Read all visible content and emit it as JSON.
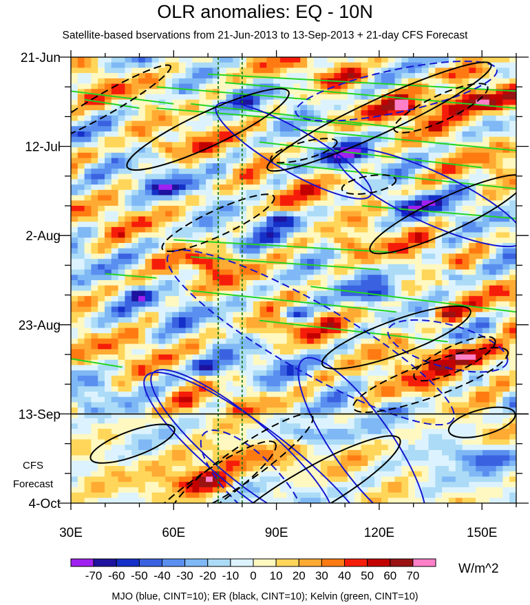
{
  "chart_data": {
    "type": "heatmap",
    "title": "OLR anomalies: EQ - 10N",
    "subtitle": "Satellite-based bservations from 21-Jun-2013 to 13-Sep-2013 + 21-day CFS Forecast",
    "x_axis": {
      "range": [
        30,
        160
      ],
      "unit": "longitude (degrees E)",
      "ticks": [
        30,
        60,
        90,
        120,
        150
      ],
      "tick_labels": [
        "30E",
        "60E",
        "90E",
        "120E",
        "150E"
      ]
    },
    "y_axis": {
      "range": [
        "21-Jun-2013",
        "4-Oct-2013"
      ],
      "range_days": [
        0,
        105
      ],
      "unit": "days since 21-Jun-2013",
      "ticks": [
        0,
        21,
        42,
        63,
        84,
        105
      ],
      "tick_labels": [
        "21-Jun",
        "12-Jul",
        "2-Aug",
        "23-Aug",
        "13-Sep",
        "4-Oct"
      ]
    },
    "forecast_start_day": 84,
    "forecast_label_lines": [
      "CFS",
      "Forecast"
    ],
    "reference_lines_lon": [
      73,
      80
    ],
    "colorbar": {
      "unit": "W/m^2",
      "levels": [
        -70,
        -60,
        -50,
        -40,
        -30,
        -20,
        -10,
        0,
        10,
        20,
        30,
        40,
        50,
        60,
        70
      ],
      "level_labels": [
        "-70",
        "-60",
        "-50",
        "-40",
        "-30",
        "-20",
        "-10",
        "0",
        "10",
        "20",
        "30",
        "40",
        "50",
        "60",
        "70"
      ],
      "colors": [
        "#a020f0",
        "#1d139e",
        "#1530c8",
        "#3a62e0",
        "#5a8ff0",
        "#7fb8f5",
        "#abdbf6",
        "#dcf3ff",
        "#fff8c0",
        "#ffd65a",
        "#ffaa33",
        "#ff7b12",
        "#f51d0a",
        "#c20000",
        "#9a1313",
        "#ff80c8"
      ]
    },
    "overlays": [
      {
        "name": "MJO",
        "color": "#1515d0",
        "cint": 10
      },
      {
        "name": "ER",
        "color": "#000000",
        "cint": 10
      },
      {
        "name": "Kelvin",
        "color": "#22d422",
        "cint": 10
      }
    ],
    "features": {
      "mjo_solid": [
        {
          "lon": 95,
          "day": 22,
          "rlon": 26,
          "rday": 5,
          "deg": 30
        },
        {
          "lon": 135,
          "day": 33,
          "rlon": 30,
          "rday": 6,
          "deg": 25
        },
        {
          "lon": 85,
          "day": 96,
          "rlon": 42,
          "rday": 8,
          "deg": 38
        },
        {
          "lon": 80,
          "day": 92,
          "rlon": 34,
          "rday": 7,
          "deg": 40
        },
        {
          "lon": 115,
          "day": 91,
          "rlon": 30,
          "rday": 7,
          "deg": 55
        }
      ],
      "mjo_dashed": [
        {
          "lon": 125,
          "day": 8,
          "rlon": 30,
          "rday": 5,
          "deg": -12
        },
        {
          "lon": 100,
          "day": 66,
          "rlon": 48,
          "rday": 8,
          "deg": 30
        },
        {
          "lon": 140,
          "day": 68,
          "rlon": 18,
          "rday": 5,
          "deg": 15
        },
        {
          "lon": 83,
          "day": 100,
          "rlon": 20,
          "rday": 6,
          "deg": 45
        }
      ],
      "er_solid": [
        {
          "lon": 70,
          "day": 17,
          "rlon": 26,
          "rday": 4,
          "deg": -25
        },
        {
          "lon": 120,
          "day": 14,
          "rlon": 36,
          "rday": 4,
          "deg": -25
        },
        {
          "lon": 140,
          "day": 37,
          "rlon": 25,
          "rday": 4,
          "deg": -25
        },
        {
          "lon": 125,
          "day": 66,
          "rlon": 23,
          "rday": 4,
          "deg": -20
        },
        {
          "lon": 48,
          "day": 91,
          "rlon": 13,
          "rday": 3,
          "deg": -20
        },
        {
          "lon": 150,
          "day": 86,
          "rlon": 10,
          "rday": 3,
          "deg": -15
        },
        {
          "lon": 100,
          "day": 102,
          "rlon": 30,
          "rday": 5,
          "deg": -30
        }
      ],
      "er_dashed": [
        {
          "lon": 40,
          "day": 11,
          "rlon": 22,
          "rday": 2.5,
          "deg": -30
        },
        {
          "lon": 73,
          "day": 39,
          "rlon": 18,
          "rday": 3,
          "deg": -25
        },
        {
          "lon": 98,
          "day": 22,
          "rlon": 10,
          "rday": 2,
          "deg": -15
        },
        {
          "lon": 117,
          "day": 30,
          "rlon": 8,
          "rday": 2,
          "deg": -10
        },
        {
          "lon": 138,
          "day": 12,
          "rlon": 15,
          "rday": 3,
          "deg": -25
        },
        {
          "lon": 142,
          "day": 71,
          "rlon": 13,
          "rday": 3,
          "deg": -25
        },
        {
          "lon": 135,
          "day": 76,
          "rlon": 24,
          "rday": 4,
          "deg": -20
        },
        {
          "lon": 80,
          "day": 96,
          "rlon": 25,
          "rday": 4,
          "deg": -35
        },
        {
          "lon": 70,
          "day": 102,
          "rlon": 24,
          "rday": 4,
          "deg": -35
        }
      ],
      "kelvin_lines": [
        [
          [
            30,
            8
          ],
          [
            60,
            11
          ]
        ],
        [
          [
            34,
            10
          ],
          [
            50,
            12
          ]
        ],
        [
          [
            55,
            7
          ],
          [
            100,
            10
          ]
        ],
        [
          [
            55,
            12
          ],
          [
            115,
            16
          ]
        ],
        [
          [
            65,
            11
          ],
          [
            130,
            17
          ]
        ],
        [
          [
            70,
            4
          ],
          [
            160,
            8
          ]
        ],
        [
          [
            75,
            6
          ],
          [
            160,
            12
          ]
        ],
        [
          [
            85,
            20
          ],
          [
            150,
            26
          ]
        ],
        [
          [
            95,
            17
          ],
          [
            160,
            22
          ]
        ],
        [
          [
            90,
            25
          ],
          [
            160,
            31
          ]
        ],
        [
          [
            115,
            35
          ],
          [
            160,
            38
          ]
        ],
        [
          [
            60,
            43
          ],
          [
            125,
            46
          ]
        ],
        [
          [
            65,
            47
          ],
          [
            120,
            50
          ]
        ],
        [
          [
            100,
            54
          ],
          [
            160,
            60
          ]
        ],
        [
          [
            65,
            55
          ],
          [
            125,
            60
          ]
        ],
        [
          [
            30,
            71
          ],
          [
            45,
            73
          ]
        ],
        [
          [
            85,
            62
          ],
          [
            140,
            67
          ]
        ],
        [
          [
            40,
            51
          ],
          [
            55,
            52
          ]
        ]
      ],
      "positive_blobs": [
        {
          "lon": 58,
          "day": 21,
          "rlon": 4,
          "rday": 1.5,
          "v": 30
        },
        {
          "lon": 75,
          "day": 14,
          "rlon": 3,
          "rday": 1.5,
          "v": 25
        },
        {
          "lon": 110,
          "day": 5,
          "rlon": 8,
          "rday": 2,
          "v": 30
        },
        {
          "lon": 150,
          "day": 10,
          "rlon": 12,
          "rday": 3,
          "v": 55
        },
        {
          "lon": 145,
          "day": 4,
          "rlon": 10,
          "rday": 2,
          "v": 45
        },
        {
          "lon": 128,
          "day": 12,
          "rlon": 8,
          "rday": 2,
          "v": 30
        },
        {
          "lon": 70,
          "day": 48,
          "rlon": 7,
          "rday": 2,
          "v": 40
        },
        {
          "lon": 145,
          "day": 70,
          "rlon": 14,
          "rday": 3,
          "v": 50
        },
        {
          "lon": 75,
          "day": 94,
          "rlon": 16,
          "rday": 4,
          "v": 35
        },
        {
          "lon": 68,
          "day": 100,
          "rlon": 9,
          "rday": 3,
          "v": 55
        },
        {
          "lon": 92,
          "day": 64,
          "rlon": 6,
          "rday": 2,
          "v": 30
        },
        {
          "lon": 110,
          "day": 44,
          "rlon": 6,
          "rday": 2,
          "v": 30
        },
        {
          "lon": 140,
          "day": 60,
          "rlon": 5,
          "rday": 2,
          "v": 35
        }
      ],
      "negative_blobs": [
        {
          "lon": 90,
          "day": 38,
          "rlon": 4,
          "rday": 1.5,
          "v": -55
        },
        {
          "lon": 110,
          "day": 23,
          "rlon": 6,
          "rday": 2,
          "v": -45
        },
        {
          "lon": 130,
          "day": 35,
          "rlon": 6,
          "rday": 2,
          "v": -50
        },
        {
          "lon": 120,
          "day": 56,
          "rlon": 4,
          "rday": 1.5,
          "v": -50
        },
        {
          "lon": 95,
          "day": 60,
          "rlon": 5,
          "rday": 1.5,
          "v": -45
        },
        {
          "lon": 100,
          "day": 89,
          "rlon": 8,
          "rday": 2,
          "v": -45
        },
        {
          "lon": 150,
          "day": 94,
          "rlon": 8,
          "rday": 2.5,
          "v": -45
        },
        {
          "lon": 70,
          "day": 73,
          "rlon": 5,
          "rday": 2,
          "v": -40
        },
        {
          "lon": 60,
          "day": 31,
          "rlon": 5,
          "rday": 1.5,
          "v": -40
        },
        {
          "lon": 50,
          "day": 56,
          "rlon": 4,
          "rday": 1.5,
          "v": -35
        },
        {
          "lon": 140,
          "day": 51,
          "rlon": 4,
          "rday": 1.5,
          "v": -45
        }
      ]
    },
    "footer": "MJO (blue, CINT=10); ER (black, CINT=10); Kelvin (green, CINT=10)"
  }
}
